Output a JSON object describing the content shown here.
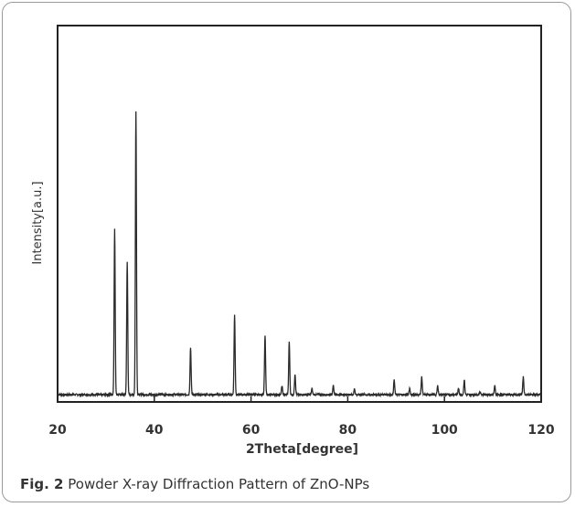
{
  "caption": {
    "figure_label": "Fig. 2",
    "text": "Powder X-ray Diffraction Pattern of ZnO-NPs"
  },
  "chart_data": {
    "type": "line",
    "xlabel": "2Theta[degree]",
    "ylabel": "Intensity[a.u.]",
    "xlim": [
      20,
      120
    ],
    "ylim": [
      0,
      1.0
    ],
    "xticks": [
      20,
      40,
      60,
      80,
      100,
      120
    ],
    "y_tick_labels": false,
    "grid": false,
    "baseline": 0.04,
    "peaks": [
      {
        "x": 31.8,
        "y": 0.6
      },
      {
        "x": 34.4,
        "y": 0.49
      },
      {
        "x": 36.2,
        "y": 1.0
      },
      {
        "x": 47.5,
        "y": 0.2
      },
      {
        "x": 56.6,
        "y": 0.31
      },
      {
        "x": 62.9,
        "y": 0.24
      },
      {
        "x": 66.4,
        "y": 0.07
      },
      {
        "x": 67.9,
        "y": 0.22
      },
      {
        "x": 69.1,
        "y": 0.11
      },
      {
        "x": 72.6,
        "y": 0.06
      },
      {
        "x": 77.0,
        "y": 0.07
      },
      {
        "x": 81.4,
        "y": 0.06
      },
      {
        "x": 89.6,
        "y": 0.09
      },
      {
        "x": 92.8,
        "y": 0.06
      },
      {
        "x": 95.3,
        "y": 0.1
      },
      {
        "x": 98.6,
        "y": 0.07
      },
      {
        "x": 102.9,
        "y": 0.06
      },
      {
        "x": 104.1,
        "y": 0.09
      },
      {
        "x": 107.4,
        "y": 0.05
      },
      {
        "x": 110.4,
        "y": 0.07
      },
      {
        "x": 116.3,
        "y": 0.1
      }
    ]
  }
}
